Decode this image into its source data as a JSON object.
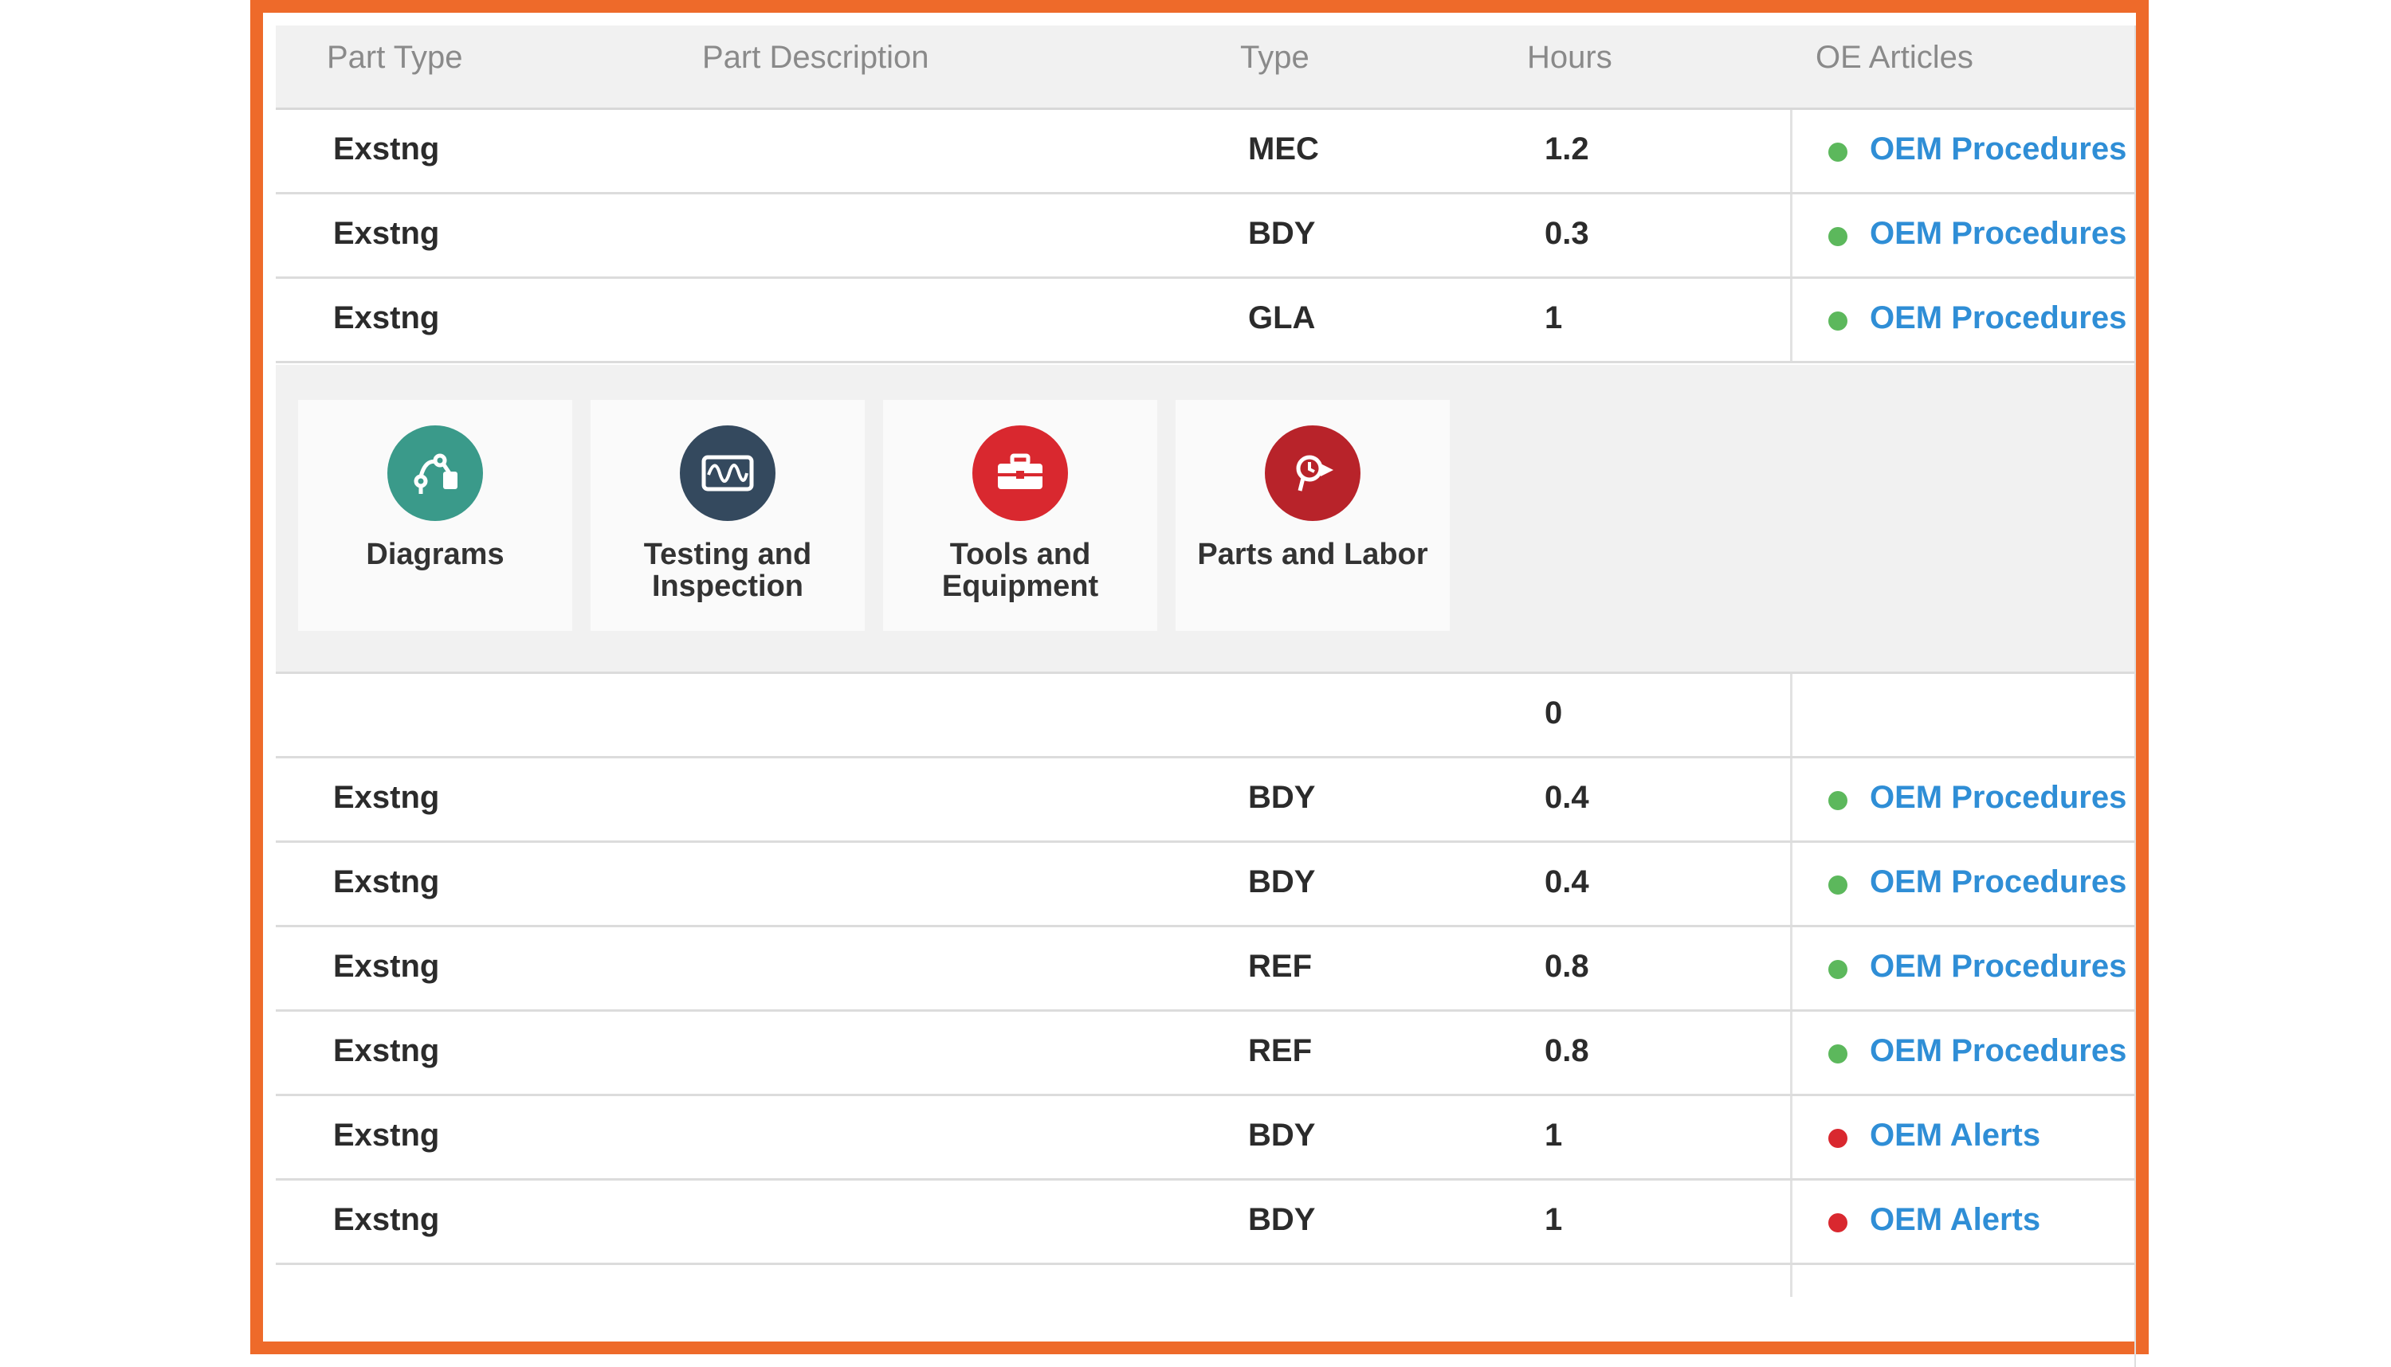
{
  "table": {
    "headers": {
      "part_type": "Part Type",
      "part_description": "Part Description",
      "type": "Type",
      "hours": "Hours",
      "oe_articles": "OE Articles"
    },
    "rows_top": [
      {
        "part_type": "Exstng",
        "type": "MEC",
        "hours": "1.2",
        "article": "OEM Procedures",
        "status": "green"
      },
      {
        "part_type": "Exstng",
        "type": "BDY",
        "hours": "0.3",
        "article": "OEM Procedures",
        "status": "green"
      },
      {
        "part_type": "Exstng",
        "type": "GLA",
        "hours": "1",
        "article": "OEM Procedures",
        "status": "green"
      }
    ],
    "subtotal_row": {
      "hours": "0"
    },
    "rows_bottom": [
      {
        "part_type": "Exstng",
        "type": "BDY",
        "hours": "0.4",
        "article": "OEM Procedures",
        "status": "green"
      },
      {
        "part_type": "Exstng",
        "type": "BDY",
        "hours": "0.4",
        "article": "OEM Procedures",
        "status": "green"
      },
      {
        "part_type": "Exstng",
        "type": "REF",
        "hours": "0.8",
        "article": "OEM Procedures",
        "status": "green"
      },
      {
        "part_type": "Exstng",
        "type": "REF",
        "hours": "0.8",
        "article": "OEM Procedures",
        "status": "green"
      },
      {
        "part_type": "Exstng",
        "type": "BDY",
        "hours": "1",
        "article": "OEM Alerts",
        "status": "red"
      },
      {
        "part_type": "Exstng",
        "type": "BDY",
        "hours": "1",
        "article": "OEM Alerts",
        "status": "red"
      }
    ]
  },
  "tiles": [
    {
      "label": "Diagrams",
      "icon": "diagram-icon",
      "color": "#3a9a8a"
    },
    {
      "label": "Testing and\nInspection",
      "icon": "waveform-icon",
      "color": "#34495e"
    },
    {
      "label": "Tools and\nEquipment",
      "icon": "toolbox-icon",
      "color": "#d9282f"
    },
    {
      "label": "Parts and Labor",
      "icon": "parts-labor-icon",
      "color": "#b8232a"
    }
  ],
  "colors": {
    "frame": "#ee6a2a",
    "status_green": "#5cb85c",
    "status_red": "#d9282f",
    "link": "#2f8ed6"
  }
}
